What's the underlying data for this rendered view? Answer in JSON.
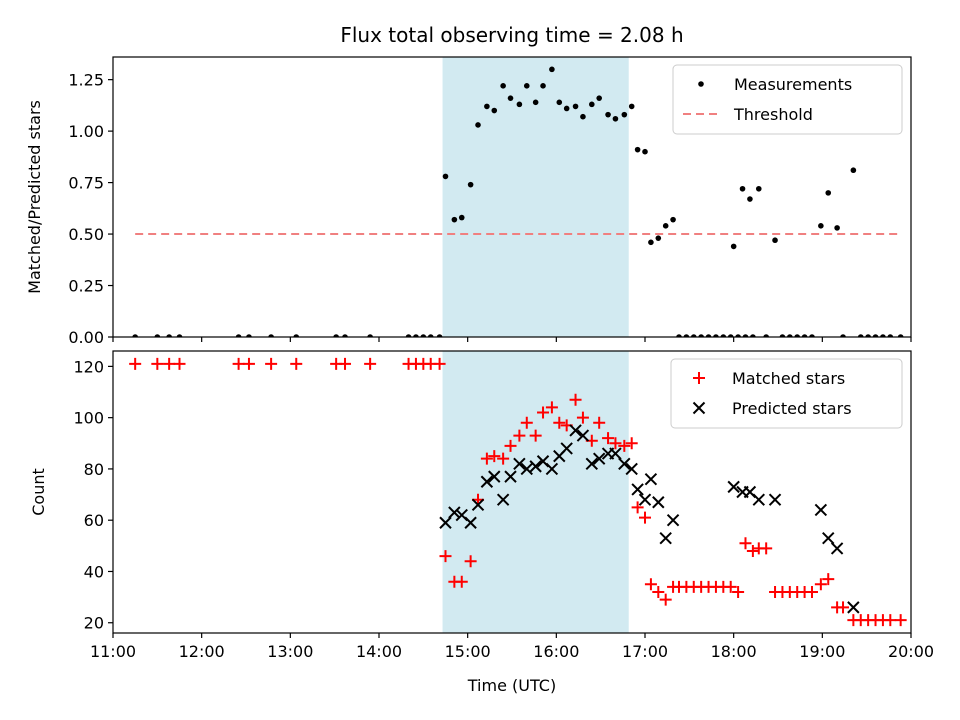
{
  "figure": {
    "title": "Flux total observing time = 2.08 h"
  },
  "chart_data": [
    {
      "type": "scatter",
      "ylabel": "Matched/Predicted stars",
      "xlabel": "",
      "xlim": [
        "11:00",
        "20:00"
      ],
      "ylim": [
        0,
        1.36
      ],
      "yticks": [
        "0.00",
        "0.25",
        "0.50",
        "0.75",
        "1.00",
        "1.25"
      ],
      "shaded_interval": {
        "start": "14:43",
        "end": "16:49",
        "color": "#add8e6"
      },
      "legend": {
        "position": "top-right",
        "entries": [
          "Measurements",
          "Threshold"
        ]
      },
      "series": [
        {
          "name": "Measurements",
          "color": "#000000",
          "marker": "dot",
          "points": [
            [
              "11:15",
              0
            ],
            [
              "11:30",
              0
            ],
            [
              "11:38",
              0
            ],
            [
              "11:45",
              0
            ],
            [
              "12:25",
              0
            ],
            [
              "12:32",
              0
            ],
            [
              "12:47",
              0
            ],
            [
              "13:04",
              0
            ],
            [
              "13:31",
              0
            ],
            [
              "13:37",
              0
            ],
            [
              "13:54",
              0
            ],
            [
              "14:20",
              0
            ],
            [
              "14:25",
              0
            ],
            [
              "14:30",
              0
            ],
            [
              "14:35",
              0
            ],
            [
              "14:41",
              0
            ],
            [
              "14:45",
              0.78
            ],
            [
              "14:51",
              0.57
            ],
            [
              "14:56",
              0.58
            ],
            [
              "15:02",
              0.74
            ],
            [
              "15:07",
              1.03
            ],
            [
              "15:13",
              1.12
            ],
            [
              "15:18",
              1.1
            ],
            [
              "15:24",
              1.22
            ],
            [
              "15:29",
              1.16
            ],
            [
              "15:35",
              1.13
            ],
            [
              "15:40",
              1.22
            ],
            [
              "15:46",
              1.14
            ],
            [
              "15:51",
              1.22
            ],
            [
              "15:57",
              1.3
            ],
            [
              "16:02",
              1.14
            ],
            [
              "16:07",
              1.11
            ],
            [
              "16:13",
              1.12
            ],
            [
              "16:18",
              1.07
            ],
            [
              "16:24",
              1.13
            ],
            [
              "16:29",
              1.16
            ],
            [
              "16:35",
              1.08
            ],
            [
              "16:40",
              1.06
            ],
            [
              "16:46",
              1.08
            ],
            [
              "16:51",
              1.12
            ],
            [
              "16:55",
              0.91
            ],
            [
              "17:00",
              0.9
            ],
            [
              "17:04",
              0.46
            ],
            [
              "17:09",
              0.48
            ],
            [
              "17:14",
              0.54
            ],
            [
              "17:19",
              0.57
            ],
            [
              "17:23",
              0
            ],
            [
              "17:28",
              0
            ],
            [
              "17:33",
              0
            ],
            [
              "17:38",
              0
            ],
            [
              "17:43",
              0
            ],
            [
              "17:48",
              0
            ],
            [
              "17:53",
              0
            ],
            [
              "17:58",
              0
            ],
            [
              "18:03",
              0
            ],
            [
              "18:08",
              0
            ],
            [
              "18:13",
              0
            ],
            [
              "18:00",
              0.44
            ],
            [
              "18:06",
              0.72
            ],
            [
              "18:11",
              0.67
            ],
            [
              "18:17",
              0.72
            ],
            [
              "18:22",
              0
            ],
            [
              "18:28",
              0.47
            ],
            [
              "18:33",
              0
            ],
            [
              "18:38",
              0
            ],
            [
              "18:43",
              0
            ],
            [
              "18:48",
              0
            ],
            [
              "18:53",
              0
            ],
            [
              "18:59",
              0.54
            ],
            [
              "19:04",
              0.7
            ],
            [
              "19:10",
              0.53
            ],
            [
              "19:14",
              0
            ],
            [
              "19:21",
              0.81
            ],
            [
              "19:26",
              0
            ],
            [
              "19:31",
              0
            ],
            [
              "19:36",
              0
            ],
            [
              "19:41",
              0
            ],
            [
              "19:46",
              0
            ],
            [
              "19:53",
              0
            ]
          ]
        },
        {
          "name": "Threshold",
          "color": "#f08080",
          "style": "dashed",
          "points": [
            [
              "11:15",
              0.5
            ],
            [
              "19:53",
              0.5
            ]
          ]
        }
      ]
    },
    {
      "type": "scatter",
      "ylabel": "Count",
      "xlabel": "Time (UTC)",
      "xlim": [
        "11:00",
        "20:00"
      ],
      "ylim": [
        16,
        126
      ],
      "yticks": [
        "20",
        "40",
        "60",
        "80",
        "100",
        "120"
      ],
      "xticks": [
        "11:00",
        "12:00",
        "13:00",
        "14:00",
        "15:00",
        "16:00",
        "17:00",
        "18:00",
        "19:00",
        "20:00"
      ],
      "shaded_interval": {
        "start": "14:43",
        "end": "16:49",
        "color": "#add8e6"
      },
      "legend": {
        "position": "top-right",
        "entries": [
          "Matched stars",
          "Predicted stars"
        ]
      },
      "series": [
        {
          "name": "Matched stars",
          "color": "#ff0000",
          "marker": "plus",
          "points": [
            [
              "11:15",
              121
            ],
            [
              "11:30",
              121
            ],
            [
              "11:38",
              121
            ],
            [
              "11:45",
              121
            ],
            [
              "12:25",
              121
            ],
            [
              "12:32",
              121
            ],
            [
              "12:47",
              121
            ],
            [
              "13:04",
              121
            ],
            [
              "13:31",
              121
            ],
            [
              "13:37",
              121
            ],
            [
              "13:54",
              121
            ],
            [
              "14:20",
              121
            ],
            [
              "14:25",
              121
            ],
            [
              "14:30",
              121
            ],
            [
              "14:35",
              121
            ],
            [
              "14:41",
              121
            ],
            [
              "14:45",
              46
            ],
            [
              "14:51",
              36
            ],
            [
              "14:56",
              36
            ],
            [
              "15:02",
              44
            ],
            [
              "15:07",
              68
            ],
            [
              "15:13",
              84
            ],
            [
              "15:18",
              85
            ],
            [
              "15:24",
              84
            ],
            [
              "15:29",
              89
            ],
            [
              "15:35",
              93
            ],
            [
              "15:40",
              98
            ],
            [
              "15:46",
              93
            ],
            [
              "15:51",
              102
            ],
            [
              "15:57",
              104
            ],
            [
              "16:02",
              98
            ],
            [
              "16:07",
              97
            ],
            [
              "16:13",
              107
            ],
            [
              "16:18",
              100
            ],
            [
              "16:24",
              91
            ],
            [
              "16:29",
              98
            ],
            [
              "16:35",
              92
            ],
            [
              "16:40",
              90
            ],
            [
              "16:46",
              89
            ],
            [
              "16:51",
              90
            ],
            [
              "16:55",
              65
            ],
            [
              "17:00",
              61
            ],
            [
              "17:04",
              35
            ],
            [
              "17:09",
              32
            ],
            [
              "17:14",
              29
            ],
            [
              "17:19",
              34
            ],
            [
              "17:23",
              34
            ],
            [
              "17:28",
              34
            ],
            [
              "17:33",
              34
            ],
            [
              "17:38",
              34
            ],
            [
              "17:43",
              34
            ],
            [
              "17:48",
              34
            ],
            [
              "17:53",
              34
            ],
            [
              "17:58",
              34
            ],
            [
              "18:03",
              32
            ],
            [
              "18:08",
              51
            ],
            [
              "18:13",
              48
            ],
            [
              "18:17",
              49
            ],
            [
              "18:22",
              49
            ],
            [
              "18:28",
              32
            ],
            [
              "18:33",
              32
            ],
            [
              "18:38",
              32
            ],
            [
              "18:43",
              32
            ],
            [
              "18:48",
              32
            ],
            [
              "18:53",
              32
            ],
            [
              "18:59",
              35
            ],
            [
              "19:04",
              37
            ],
            [
              "19:10",
              26
            ],
            [
              "19:14",
              26
            ],
            [
              "19:21",
              21
            ],
            [
              "19:26",
              21
            ],
            [
              "19:31",
              21
            ],
            [
              "19:36",
              21
            ],
            [
              "19:41",
              21
            ],
            [
              "19:46",
              21
            ],
            [
              "19:53",
              21
            ]
          ]
        },
        {
          "name": "Predicted stars",
          "color": "#000000",
          "marker": "x",
          "points": [
            [
              "14:45",
              59
            ],
            [
              "14:51",
              63
            ],
            [
              "14:56",
              62
            ],
            [
              "15:02",
              59
            ],
            [
              "15:07",
              66
            ],
            [
              "15:13",
              75
            ],
            [
              "15:18",
              77
            ],
            [
              "15:24",
              68
            ],
            [
              "15:29",
              77
            ],
            [
              "15:35",
              82
            ],
            [
              "15:40",
              80
            ],
            [
              "15:46",
              81
            ],
            [
              "15:51",
              83
            ],
            [
              "15:57",
              80
            ],
            [
              "16:02",
              85
            ],
            [
              "16:07",
              88
            ],
            [
              "16:13",
              95
            ],
            [
              "16:18",
              93
            ],
            [
              "16:24",
              82
            ],
            [
              "16:29",
              84
            ],
            [
              "16:35",
              86
            ],
            [
              "16:40",
              86
            ],
            [
              "16:46",
              82
            ],
            [
              "16:51",
              80
            ],
            [
              "16:55",
              72
            ],
            [
              "17:00",
              68
            ],
            [
              "17:04",
              76
            ],
            [
              "17:09",
              67
            ],
            [
              "17:14",
              53
            ],
            [
              "17:19",
              60
            ],
            [
              "18:00",
              73
            ],
            [
              "18:06",
              71
            ],
            [
              "18:11",
              71
            ],
            [
              "18:17",
              68
            ],
            [
              "18:28",
              68
            ],
            [
              "18:59",
              64
            ],
            [
              "19:04",
              53
            ],
            [
              "19:10",
              49
            ],
            [
              "19:21",
              26
            ]
          ]
        }
      ]
    }
  ]
}
